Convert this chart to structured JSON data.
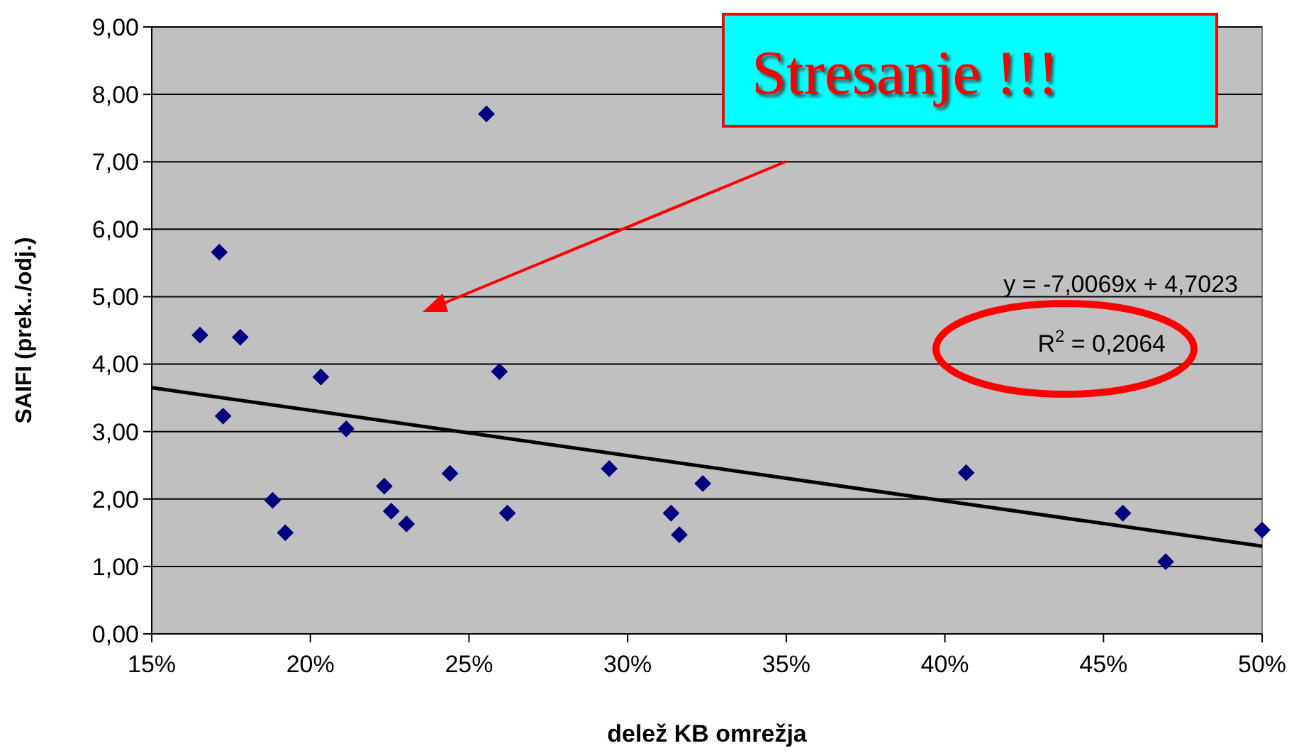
{
  "chart_data": {
    "type": "scatter",
    "xlabel": "delež KB omrežja",
    "ylabel": "SAIFI (prek../odj.)",
    "xlim": [
      0.15,
      0.5
    ],
    "xticks": [
      {
        "value": 0.15,
        "label": "15%"
      },
      {
        "value": 0.2,
        "label": "20%"
      },
      {
        "value": 0.25,
        "label": "25%"
      },
      {
        "value": 0.3,
        "label": "30%"
      },
      {
        "value": 0.35,
        "label": "35%"
      },
      {
        "value": 0.4,
        "label": "40%"
      },
      {
        "value": 0.45,
        "label": "45%"
      },
      {
        "value": 0.5,
        "label": "50%"
      }
    ],
    "ylim": [
      0,
      9
    ],
    "yticks": [
      {
        "value": 0,
        "label": "0,00"
      },
      {
        "value": 1,
        "label": "1,00"
      },
      {
        "value": 2,
        "label": "2,00"
      },
      {
        "value": 3,
        "label": "3,00"
      },
      {
        "value": 4,
        "label": "4,00"
      },
      {
        "value": 5,
        "label": "5,00"
      },
      {
        "value": 6,
        "label": "6,00"
      },
      {
        "value": 7,
        "label": "7,00"
      },
      {
        "value": 8,
        "label": "8,00"
      },
      {
        "value": 9,
        "label": "9,00"
      }
    ],
    "grid": "y",
    "series": [
      {
        "marker": "diamond",
        "color": "#000080",
        "x": [
          0.1652,
          0.1713,
          0.1725,
          0.1779,
          0.1881,
          0.1921,
          0.2033,
          0.2113,
          0.2233,
          0.2255,
          0.2303,
          0.244,
          0.2555,
          0.2596,
          0.2621,
          0.2942,
          0.3137,
          0.3163,
          0.3237,
          0.4067,
          0.4561,
          0.4696,
          0.5
        ],
        "values": [
          4.43,
          5.66,
          3.23,
          4.4,
          1.98,
          1.5,
          3.81,
          3.04,
          2.19,
          1.82,
          1.63,
          2.38,
          7.71,
          3.89,
          1.79,
          2.45,
          1.79,
          1.47,
          2.23,
          2.39,
          1.79,
          1.07,
          1.54
        ]
      },
      {
        "type": "line",
        "color": "#000000",
        "x": [
          0.15,
          0.5
        ],
        "values": [
          3.65,
          1.3
        ]
      }
    ],
    "annotations": [
      "Stresanje !!!",
      "y = -7,0069x + 4,7023",
      "R$^{2}$ = 0,2064"
    ]
  }
}
